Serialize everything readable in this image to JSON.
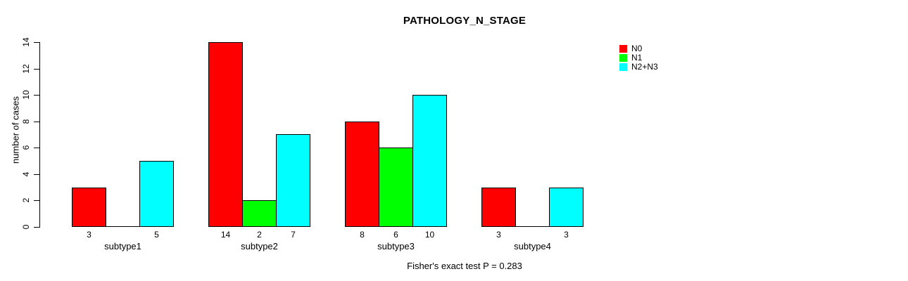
{
  "chart_data": {
    "type": "bar",
    "title": "PATHOLOGY_N_STAGE",
    "ylabel": "number of cases",
    "xlabel": "",
    "footnote": "Fisher's exact test P = 0.283",
    "categories": [
      "subtype1",
      "subtype2",
      "subtype3",
      "subtype4"
    ],
    "series": [
      {
        "name": "N0",
        "color": "#ff0000",
        "values": [
          3,
          14,
          8,
          3
        ]
      },
      {
        "name": "N1",
        "color": "#00ff00",
        "values": [
          0,
          2,
          6,
          0
        ]
      },
      {
        "name": "N2+N3",
        "color": "#00ffff",
        "values": [
          5,
          7,
          10,
          3
        ]
      }
    ],
    "ylim": [
      0,
      14
    ],
    "yticks": [
      0,
      2,
      4,
      6,
      8,
      10,
      12,
      14
    ],
    "bar_value_labels_shown": true,
    "zero_value_labels_hidden": true,
    "legend_position": "right",
    "grid": false,
    "background": "#ffffff",
    "axis_color": "#000000",
    "bar_border_color": "#000000"
  }
}
